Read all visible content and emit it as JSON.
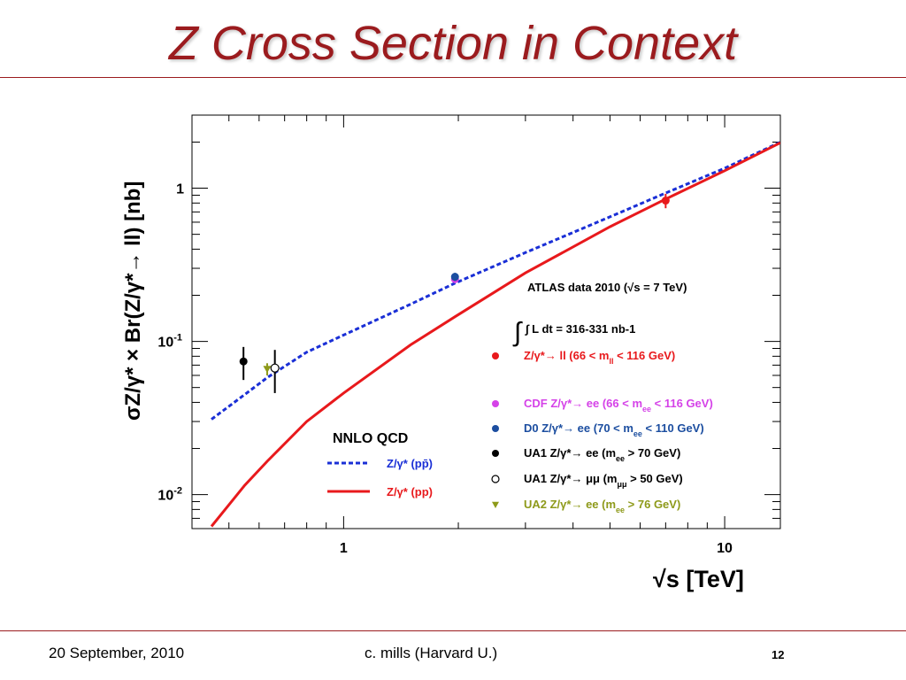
{
  "slide": {
    "title": "Z Cross Section in Context",
    "footer_date": "20 September, 2010",
    "footer_author": "c. mills (Harvard U.)",
    "page_number": "12",
    "colors": {
      "title": "#9b1b1e",
      "rule": "#9b1b1e"
    }
  },
  "chart_data": {
    "type": "scatter",
    "xscale": "log",
    "yscale": "log",
    "xlim": [
      0.4,
      14
    ],
    "ylim": [
      0.006,
      3
    ],
    "xlabel": "√s [TeV]",
    "ylabel": "σZ/γ* × Br(Z/γ*→ ll) [nb]",
    "x_ticks": [
      {
        "value": 1,
        "label": "1"
      },
      {
        "value": 10,
        "label": "10"
      }
    ],
    "y_ticks": [
      {
        "value": 1,
        "label": "1"
      },
      {
        "value": 0.1,
        "label": "10-1"
      },
      {
        "value": 0.01,
        "label": "10-2"
      }
    ],
    "annotations": {
      "atlas": "ATLAS data 2010 (√s = 7 TeV)",
      "lumi": "∫ L dt = 316-331 nb-1",
      "theory_title": "NNLO QCD"
    },
    "curves": [
      {
        "name": "Z/γ* (pp̄)",
        "style": "dashed",
        "color": "#1a2fd6",
        "points": [
          [
            0.45,
            0.031
          ],
          [
            0.55,
            0.045
          ],
          [
            0.63,
            0.058
          ],
          [
            0.8,
            0.085
          ],
          [
            1.0,
            0.11
          ],
          [
            1.5,
            0.175
          ],
          [
            1.96,
            0.24
          ],
          [
            3.0,
            0.38
          ],
          [
            5.0,
            0.65
          ],
          [
            7.0,
            0.93
          ],
          [
            10.0,
            1.35
          ],
          [
            14.0,
            2.0
          ]
        ]
      },
      {
        "name": "Z/γ* (pp)",
        "style": "solid",
        "color": "#e8191c",
        "points": [
          [
            0.45,
            0.0062
          ],
          [
            0.55,
            0.0115
          ],
          [
            0.63,
            0.0165
          ],
          [
            0.8,
            0.03
          ],
          [
            1.0,
            0.046
          ],
          [
            1.5,
            0.095
          ],
          [
            1.96,
            0.145
          ],
          [
            3.0,
            0.28
          ],
          [
            5.0,
            0.56
          ],
          [
            7.0,
            0.85
          ],
          [
            10.0,
            1.3
          ],
          [
            14.0,
            1.98
          ]
        ]
      }
    ],
    "series": [
      {
        "name": "Z/γ*→ ll (66 < mll < 116 GeV)",
        "marker": "filled-circle",
        "color": "#e8191c",
        "legend": {
          "main": "Z/γ*→ ll  (66 < m",
          "sub": "ll",
          "tail": " < 116 GeV)"
        },
        "points": [
          {
            "x": 7.0,
            "y": 0.83,
            "err": 0.09
          }
        ]
      },
      {
        "name": "CDF Z/γ*→ ee (66 < mee < 116 GeV)",
        "marker": "filled-circle",
        "color": "#d542e8",
        "legend": {
          "main": "CDF Z/γ*→ ee  (66 < m",
          "sub": "ee",
          "tail": " < 116 GeV)"
        },
        "points": [
          {
            "x": 1.96,
            "y": 0.255,
            "err": 0.015
          }
        ]
      },
      {
        "name": "D0 Z/γ*→ ee (70 < mee < 110 GeV)",
        "marker": "filled-circle",
        "color": "#1c4ea0",
        "legend": {
          "main": "D0 Z/γ*→ ee      (70 < m",
          "sub": "ee",
          "tail": " < 110 GeV)"
        },
        "points": [
          {
            "x": 1.96,
            "y": 0.264,
            "err": 0.016
          }
        ]
      },
      {
        "name": "UA1 Z/γ*→ ee (mee > 70 GeV)",
        "marker": "filled-circle",
        "color": "#000000",
        "legend": {
          "main": "UA1 Z/γ*→ ee   (m",
          "sub": "ee",
          "tail": " > 70 GeV)"
        },
        "points": [
          {
            "x": 0.546,
            "y": 0.074,
            "err": 0.018
          }
        ]
      },
      {
        "name": "UA1 Z/γ*→ μμ (mμμ > 50 GeV)",
        "marker": "open-circle",
        "color": "#000000",
        "legend": {
          "main": "UA1 Z/γ*→ μμ   (m",
          "sub": "μμ",
          "tail": " > 50 GeV)"
        },
        "points": [
          {
            "x": 0.66,
            "y": 0.067,
            "err": 0.021
          }
        ]
      },
      {
        "name": "UA2 Z/γ*→ ee (mee > 76 GeV)",
        "marker": "triangle-down",
        "color": "#8e9a1a",
        "legend": {
          "main": "UA2 Z/γ*→ ee   (m",
          "sub": "ee",
          "tail": " > 76 GeV)"
        },
        "points": [
          {
            "x": 0.63,
            "y": 0.066,
            "err": 0.006
          }
        ]
      }
    ]
  }
}
